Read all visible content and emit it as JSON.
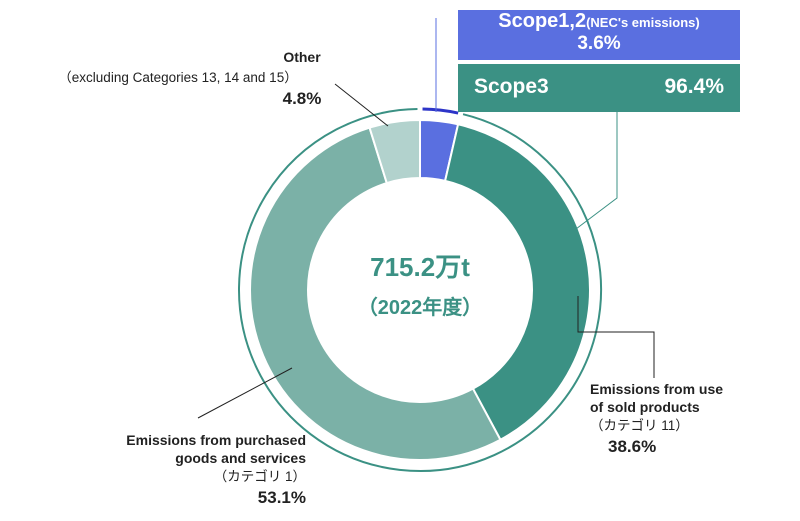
{
  "chart_data": {
    "type": "pie",
    "style": "donut",
    "center_value": "715.2万t",
    "center_sub": "（2022年度）",
    "slices": [
      {
        "name": "Scope1,2 (NEC's emissions)",
        "value": 3.6,
        "color": "#5a6fe0"
      },
      {
        "name": "Emissions from use of sold products (カテゴリ 11)",
        "value": 38.6,
        "color": "#3b9184"
      },
      {
        "name": "Emissions from purchased goods and services (カテゴリ 1)",
        "value": 53.1,
        "color": "#7bb1a7"
      },
      {
        "name": "Other (excluding Categories 13, 14 and 15)",
        "value": 4.8,
        "color": "#b2d2cd"
      }
    ],
    "outer_ring": [
      {
        "name": "Scope1,2",
        "value": 3.6,
        "color": "#2d35c8"
      },
      {
        "name": "Scope3",
        "value": 96.4,
        "color": "#3b9184"
      }
    ]
  },
  "boxes": {
    "scope12": {
      "title": "Scope1,2",
      "title_sub": "(NEC's emissions)",
      "value": "3.6%",
      "color": "#5a6fe0"
    },
    "scope3": {
      "title": "Scope3",
      "value": "96.4%",
      "color": "#3b9184"
    }
  },
  "labels": {
    "other": {
      "line1": "Other",
      "line2": "（excluding Categories 13, 14 and 15）",
      "pct": "4.8%"
    },
    "use": {
      "line1": "Emissions from use",
      "line2": "of sold products",
      "line3": "（カテゴリ 11）",
      "pct": "38.6%"
    },
    "purchased": {
      "line1": "Emissions from purchased",
      "line2": "goods and services",
      "line3": "（カテゴリ 1）",
      "pct": "53.1%"
    }
  },
  "colors": {
    "center_text": "#3b9184",
    "leader": "#222222"
  }
}
